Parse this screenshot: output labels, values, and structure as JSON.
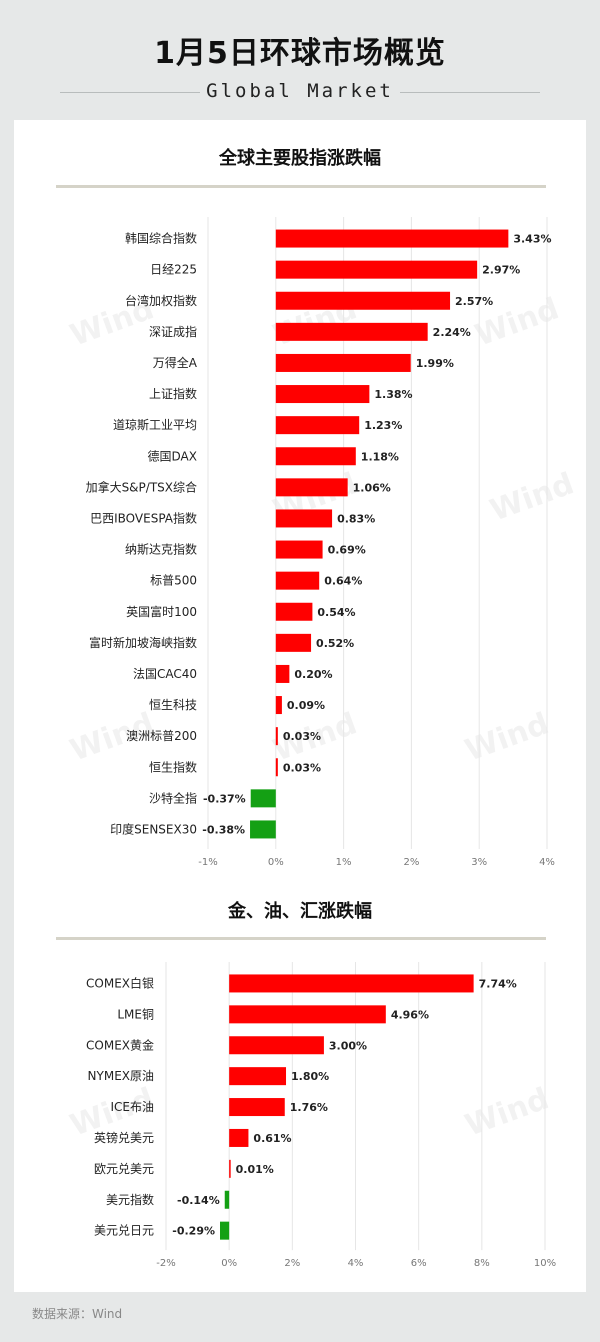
{
  "header": {
    "title": "1月5日环球市场概览",
    "subtitle": "Global Market"
  },
  "watermark_text": "Wind",
  "source_label": "数据来源：Wind",
  "colors": {
    "positive": "#ff0000",
    "negative": "#14a014"
  },
  "chart_data": [
    {
      "type": "bar",
      "orientation": "horizontal",
      "title": "全球主要股指涨跌幅",
      "categories": [
        "韩国综合指数",
        "日经225",
        "台湾加权指数",
        "深证成指",
        "万得全A",
        "上证指数",
        "道琼斯工业平均",
        "德国DAX",
        "加拿大S&P/TSX综合",
        "巴西IBOVESPA指数",
        "纳斯达克指数",
        "标普500",
        "英国富时100",
        "富时新加坡海峡指数",
        "法国CAC40",
        "恒生科技",
        "澳洲标普200",
        "恒生指数",
        "沙特全指",
        "印度SENSEX30"
      ],
      "values": [
        3.43,
        2.97,
        2.57,
        2.24,
        1.99,
        1.38,
        1.23,
        1.18,
        1.06,
        0.83,
        0.69,
        0.64,
        0.54,
        0.52,
        0.2,
        0.09,
        0.03,
        0.03,
        -0.37,
        -0.38
      ],
      "value_labels": [
        "3.43%",
        "2.97%",
        "2.57%",
        "2.24%",
        "1.99%",
        "1.38%",
        "1.23%",
        "1.18%",
        "1.06%",
        "0.83%",
        "0.69%",
        "0.64%",
        "0.54%",
        "0.52%",
        "0.20%",
        "0.09%",
        "0.03%",
        "0.03%",
        "-0.37%",
        "-0.38%"
      ],
      "xlim": [
        -1,
        4
      ],
      "ticks": [
        -1,
        0,
        1,
        2,
        3,
        4
      ],
      "tick_labels": [
        "-1%",
        "0%",
        "1%",
        "2%",
        "3%",
        "4%"
      ],
      "unit": "%",
      "grid": true
    },
    {
      "type": "bar",
      "orientation": "horizontal",
      "title": "金、油、汇涨跌幅",
      "categories": [
        "COMEX白银",
        "LME铜",
        "COMEX黄金",
        "NYMEX原油",
        "ICE布油",
        "英镑兑美元",
        "欧元兑美元",
        "美元指数",
        "美元兑日元"
      ],
      "values": [
        7.74,
        4.96,
        3.0,
        1.8,
        1.76,
        0.61,
        0.01,
        -0.14,
        -0.29
      ],
      "value_labels": [
        "7.74%",
        "4.96%",
        "3.00%",
        "1.80%",
        "1.76%",
        "0.61%",
        "0.01%",
        "-0.14%",
        "-0.29%"
      ],
      "xlim": [
        -2,
        10
      ],
      "ticks": [
        -2,
        0,
        2,
        4,
        6,
        8,
        10
      ],
      "tick_labels": [
        "-2%",
        "0%",
        "2%",
        "4%",
        "6%",
        "8%",
        "10%"
      ],
      "unit": "%",
      "grid": true
    }
  ]
}
